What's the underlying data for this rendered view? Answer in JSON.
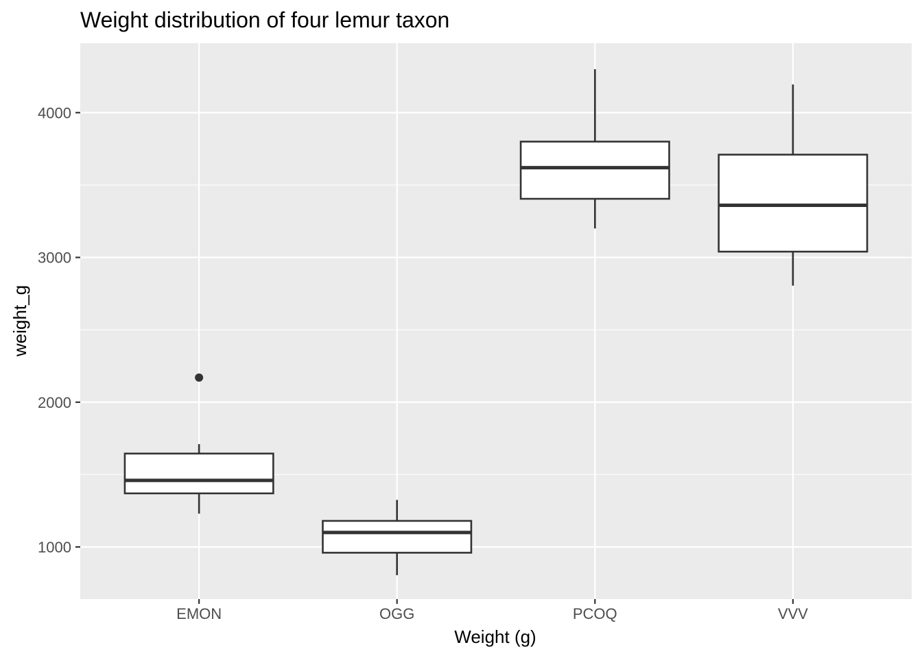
{
  "chart_data": {
    "type": "boxplot",
    "title": "Weight distribution of four lemur taxon",
    "xlabel": "Weight (g)",
    "ylabel": "weight_g",
    "ylim": [
      640,
      4480
    ],
    "y_ticks": [
      1000,
      2000,
      3000,
      4000
    ],
    "y_tick_labels": [
      "1000",
      "2000",
      "3000",
      "4000"
    ],
    "y_minor_ticks": [
      1500,
      2500,
      3500
    ],
    "grid": true,
    "categories": [
      "EMON",
      "OGG",
      "PCOQ",
      "VVV"
    ],
    "boxes": [
      {
        "category": "EMON",
        "whisker_low": 1230,
        "q1": 1370,
        "median": 1460,
        "q3": 1645,
        "whisker_high": 1710,
        "outliers": [
          2170
        ]
      },
      {
        "category": "OGG",
        "whisker_low": 805,
        "q1": 960,
        "median": 1100,
        "q3": 1180,
        "whisker_high": 1325,
        "outliers": []
      },
      {
        "category": "PCOQ",
        "whisker_low": 3200,
        "q1": 3405,
        "median": 3620,
        "q3": 3800,
        "whisker_high": 4300,
        "outliers": []
      },
      {
        "category": "VVV",
        "whisker_low": 2805,
        "q1": 3040,
        "median": 3360,
        "q3": 3710,
        "whisker_high": 4195,
        "outliers": []
      }
    ],
    "colors": {
      "box_fill": "#ffffff",
      "box_stroke": "#333333",
      "panel": "#ebebeb",
      "grid": "#ffffff"
    }
  }
}
